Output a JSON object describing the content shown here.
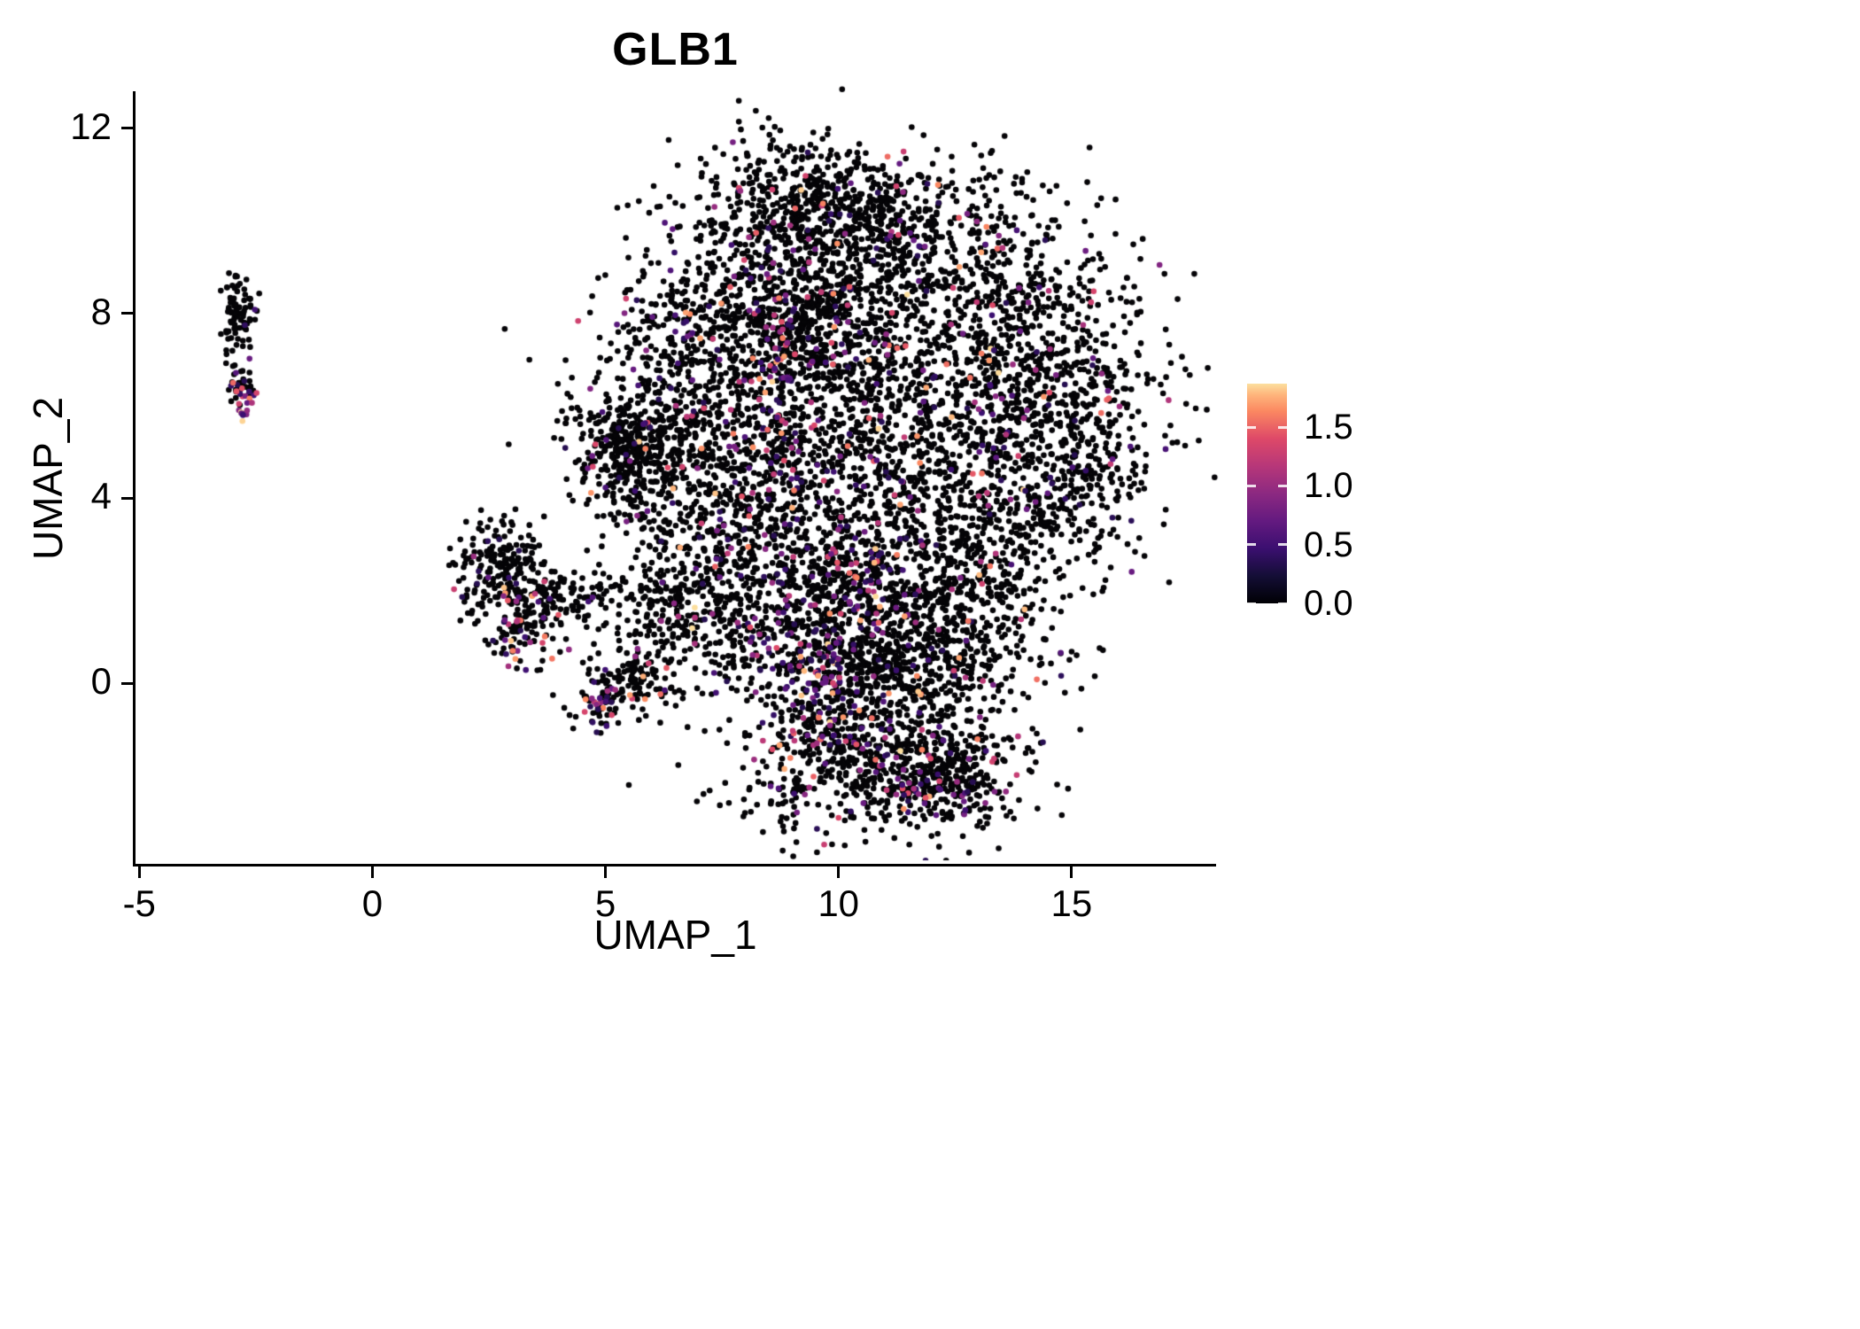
{
  "chart_data": {
    "type": "scatter",
    "title": "GLB1",
    "xlabel": "UMAP_1",
    "ylabel": "UMAP_2",
    "xlim": [
      -5.1,
      18.1
    ],
    "ylim": [
      -3.9,
      12.8
    ],
    "x_ticks": [
      -5,
      0,
      5,
      10,
      15
    ],
    "y_ticks": [
      0,
      4,
      8,
      12
    ],
    "grid": false,
    "legend_position": "right",
    "point_radius_px": 3.3,
    "expression_color_zero": "#050407",
    "colorbar": {
      "ticks": [
        "1.5",
        "1.0",
        "0.5",
        "0.0"
      ],
      "tick_values": [
        1.5,
        1.0,
        0.5,
        0.0
      ],
      "vmin": 0.0,
      "vmax": 1.87,
      "colormap": "magma",
      "stops": [
        {
          "t": 0.0,
          "color": "#000004"
        },
        {
          "t": 0.125,
          "color": "#140e36"
        },
        {
          "t": 0.25,
          "color": "#3b0f70"
        },
        {
          "t": 0.375,
          "color": "#641a80"
        },
        {
          "t": 0.5,
          "color": "#8c2981"
        },
        {
          "t": 0.625,
          "color": "#b73779"
        },
        {
          "t": 0.75,
          "color": "#de4968"
        },
        {
          "t": 0.875,
          "color": "#fb8861"
        },
        {
          "t": 0.95,
          "color": "#feb57c"
        },
        {
          "t": 1.0,
          "color": "#fcdf9e"
        }
      ]
    },
    "clusters": [
      {
        "name": "main-top-left",
        "cx": 9.3,
        "cy": 10.3,
        "sdx": 1.2,
        "sdy": 0.8,
        "n": 500,
        "frac_expr": 0.06
      },
      {
        "name": "main-top-right",
        "cx": 11.8,
        "cy": 9.6,
        "sdx": 1.4,
        "sdy": 0.9,
        "n": 450,
        "frac_expr": 0.06
      },
      {
        "name": "main-upper-left",
        "cx": 7.6,
        "cy": 7.6,
        "sdx": 1.3,
        "sdy": 1.1,
        "n": 600,
        "frac_expr": 0.08
      },
      {
        "name": "main-upper-mid",
        "cx": 9.8,
        "cy": 7.8,
        "sdx": 1.0,
        "sdy": 1.2,
        "n": 500,
        "frac_expr": 0.1
      },
      {
        "name": "main-upper-right",
        "cx": 13.8,
        "cy": 7.6,
        "sdx": 1.4,
        "sdy": 1.2,
        "n": 550,
        "frac_expr": 0.06
      },
      {
        "name": "main-right-edge",
        "cx": 15.0,
        "cy": 5.2,
        "sdx": 1.0,
        "sdy": 1.4,
        "n": 450,
        "frac_expr": 0.06
      },
      {
        "name": "main-center",
        "cx": 11.3,
        "cy": 5.2,
        "sdx": 1.5,
        "sdy": 1.4,
        "n": 650,
        "frac_expr": 0.08
      },
      {
        "name": "main-mid-left",
        "cx": 8.2,
        "cy": 3.8,
        "sdx": 1.2,
        "sdy": 1.3,
        "n": 550,
        "frac_expr": 0.08
      },
      {
        "name": "main-lower-right",
        "cx": 12.8,
        "cy": 2.8,
        "sdx": 1.3,
        "sdy": 1.1,
        "n": 500,
        "frac_expr": 0.06
      },
      {
        "name": "main-bottom-band-l",
        "cx": 9.8,
        "cy": 1.2,
        "sdx": 1.3,
        "sdy": 1.0,
        "n": 600,
        "frac_expr": 0.12
      },
      {
        "name": "main-bottom-band-r",
        "cx": 12.0,
        "cy": 0.6,
        "sdx": 1.2,
        "sdy": 0.8,
        "n": 450,
        "frac_expr": 0.08
      },
      {
        "name": "main-bottom-lobe-l",
        "cx": 10.2,
        "cy": -1.7,
        "sdx": 1.2,
        "sdy": 0.8,
        "n": 450,
        "frac_expr": 0.1
      },
      {
        "name": "main-bottom-lobe-r",
        "cx": 12.3,
        "cy": -1.9,
        "sdx": 0.9,
        "sdy": 0.7,
        "n": 350,
        "frac_expr": 0.08
      },
      {
        "name": "main-left-spur-a",
        "cx": 6.3,
        "cy": 5.3,
        "sdx": 0.9,
        "sdy": 0.9,
        "n": 350,
        "frac_expr": 0.06
      },
      {
        "name": "main-left-spur-b",
        "cx": 5.4,
        "cy": 5.0,
        "sdx": 0.5,
        "sdy": 0.6,
        "n": 250,
        "frac_expr": 0.05
      },
      {
        "name": "main-lower-left",
        "cx": 7.0,
        "cy": 2.0,
        "sdx": 0.8,
        "sdy": 1.0,
        "n": 300,
        "frac_expr": 0.06
      },
      {
        "name": "hotspot-streak",
        "cx": 8.8,
        "cy": 6.8,
        "sdx": 0.35,
        "sdy": 1.6,
        "n": 140,
        "frac_expr": 0.55
      },
      {
        "name": "hotspot-bottom",
        "cx": 9.7,
        "cy": 0.2,
        "sdx": 0.5,
        "sdy": 1.0,
        "n": 150,
        "frac_expr": 0.5
      },
      {
        "name": "hotspot-center",
        "cx": 10.4,
        "cy": 2.3,
        "sdx": 0.5,
        "sdy": 0.5,
        "n": 60,
        "frac_expr": 0.5
      },
      {
        "name": "hotspot-lobe",
        "cx": 12.1,
        "cy": -2.2,
        "sdx": 0.7,
        "sdy": 0.5,
        "n": 70,
        "frac_expr": 0.4
      },
      {
        "name": "hotspot-right-mid",
        "cx": 13.6,
        "cy": 5.9,
        "sdx": 0.4,
        "sdy": 0.9,
        "n": 50,
        "frac_expr": 0.4
      },
      {
        "name": "hotspot-mid",
        "cx": 10.8,
        "cy": 4.3,
        "sdx": 0.5,
        "sdy": 0.8,
        "n": 60,
        "frac_expr": 0.4
      },
      {
        "name": "mid-sat-top",
        "cx": 2.75,
        "cy": 2.6,
        "sdx": 0.45,
        "sdy": 0.5,
        "n": 180,
        "frac_expr": 0.07
      },
      {
        "name": "mid-sat-core",
        "cx": 3.3,
        "cy": 1.3,
        "sdx": 0.45,
        "sdy": 0.55,
        "n": 140,
        "frac_expr": 0.2
      },
      {
        "name": "mid-sat-arm",
        "cx": 4.4,
        "cy": 1.9,
        "sdx": 0.7,
        "sdy": 0.35,
        "n": 110,
        "frac_expr": 0.05
      },
      {
        "name": "mid-sat-tail",
        "cx": 5.6,
        "cy": 0.15,
        "sdx": 0.55,
        "sdy": 0.35,
        "n": 130,
        "frac_expr": 0.06
      },
      {
        "name": "mid-sat-clump",
        "cx": 4.85,
        "cy": -0.5,
        "sdx": 0.22,
        "sdy": 0.22,
        "n": 50,
        "frac_expr": 0.5
      },
      {
        "name": "mid-sat-scatter",
        "cx": 6.1,
        "cy": 1.4,
        "sdx": 0.5,
        "sdy": 0.4,
        "n": 35,
        "frac_expr": 0.05
      },
      {
        "name": "left-sat-upper",
        "cx": -2.9,
        "cy": 8.0,
        "sdx": 0.16,
        "sdy": 0.45,
        "n": 85,
        "frac_expr": 0.03
      },
      {
        "name": "left-sat-lower",
        "cx": -2.78,
        "cy": 6.4,
        "sdx": 0.13,
        "sdy": 0.28,
        "n": 50,
        "frac_expr": 0.55
      }
    ],
    "outliers": [
      {
        "x": 15.3,
        "y": 9.35,
        "v": 0.75
      },
      {
        "x": 4.3,
        "y": 3.95,
        "v": 0
      },
      {
        "x": 2.35,
        "y": 3.3,
        "v": 0
      },
      {
        "x": 6.55,
        "y": 11.2,
        "v": 0
      }
    ]
  },
  "figure": {
    "background": "#ffffff",
    "axis_color": "#000000",
    "text_color": "#000000"
  }
}
